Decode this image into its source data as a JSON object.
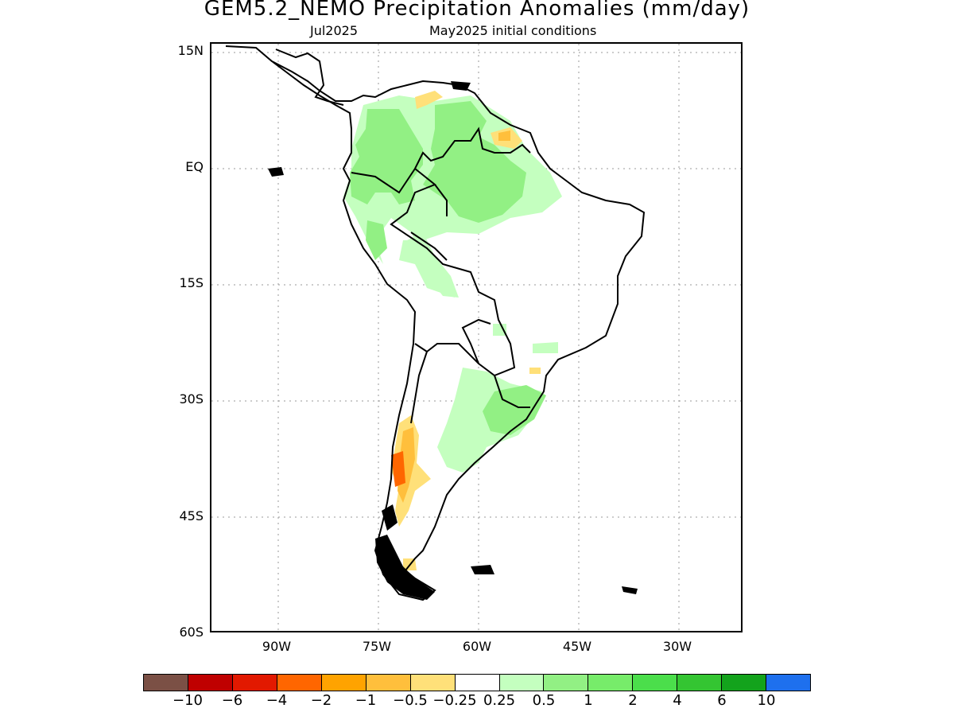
{
  "title": "GEM5.2_NEMO Precipitation Anomalies (mm/day)",
  "subtitle_left": "Jul2025",
  "subtitle_right": "May2025 initial conditions",
  "lat_labels": [
    "15N",
    "EQ",
    "15S",
    "30S",
    "45S",
    "60S"
  ],
  "lon_labels": [
    "90W",
    "75W",
    "60W",
    "45W",
    "30W"
  ],
  "colorbar": {
    "colors": [
      "#7b5045",
      "#bf0000",
      "#e21900",
      "#ff6600",
      "#ffa300",
      "#ffbf3c",
      "#ffe079",
      "#ffffff",
      "#c4ffbf",
      "#92f084",
      "#77ec6a",
      "#4bde4b",
      "#34c532",
      "#13a31c",
      "#1e70ee"
    ],
    "labels": [
      "−10",
      "−6",
      "−4",
      "−2",
      "−1",
      "−0.5",
      "−0.25",
      "0.25",
      "0.5",
      "1",
      "2",
      "4",
      "6",
      "10"
    ]
  }
}
